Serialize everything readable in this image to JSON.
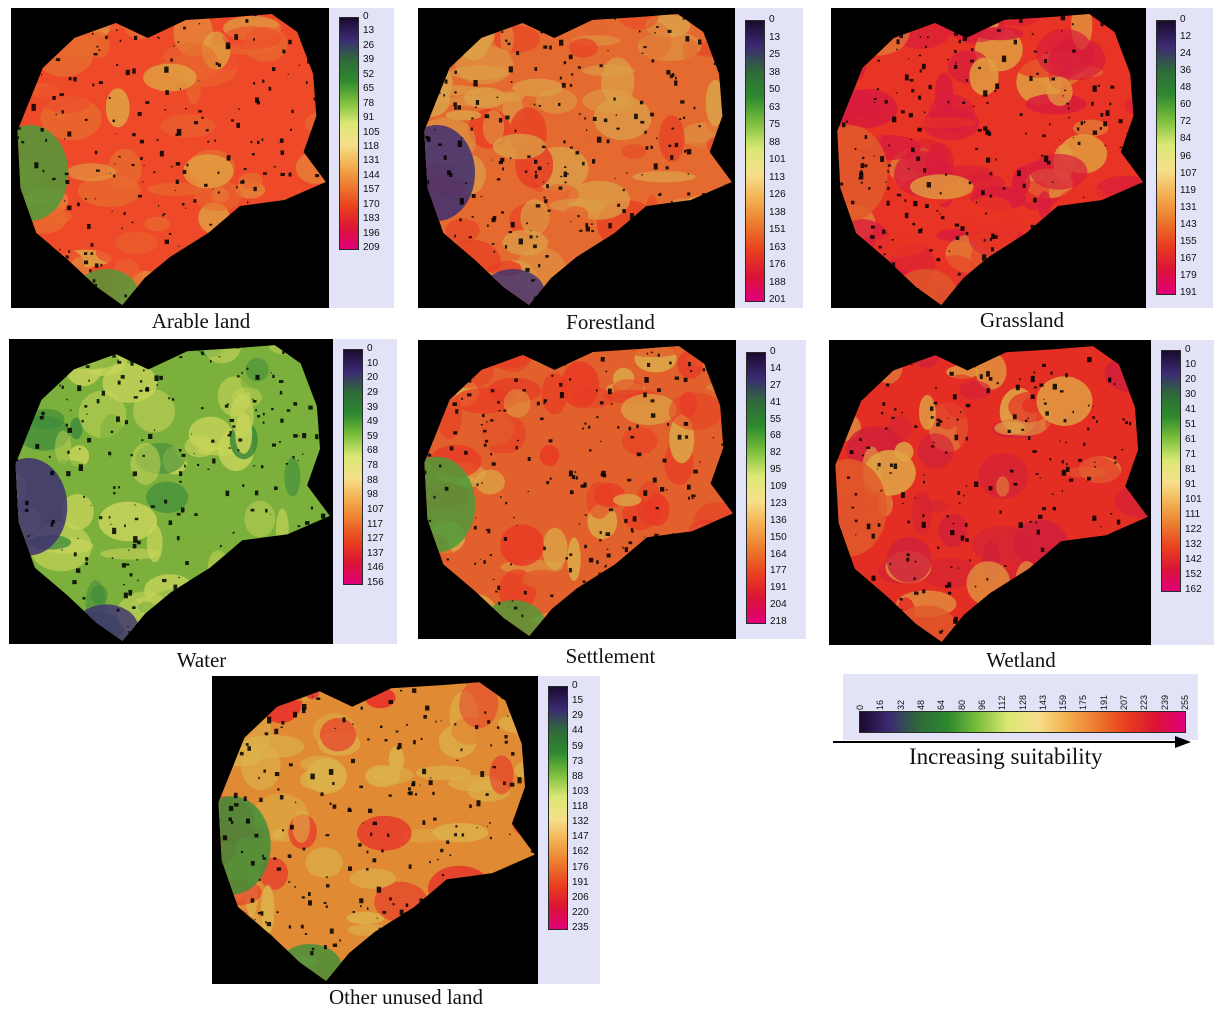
{
  "panels": [
    {
      "id": "arable",
      "caption": "Arable land",
      "legend_values": [
        "0",
        "13",
        "26",
        "39",
        "52",
        "65",
        "78",
        "91",
        "105",
        "118",
        "131",
        "144",
        "157",
        "170",
        "183",
        "196",
        "209"
      ],
      "dominant": "#ee4a2a",
      "secondary": "#e86a2e",
      "accent": "#dfa844",
      "edge": "#4d9a3a"
    },
    {
      "id": "forest",
      "caption": "Forestland",
      "legend_values": [
        "0",
        "13",
        "25",
        "38",
        "50",
        "63",
        "75",
        "88",
        "101",
        "113",
        "126",
        "138",
        "151",
        "163",
        "176",
        "188",
        "201"
      ],
      "dominant": "#e46a30",
      "secondary": "#dca048",
      "accent": "#e84024",
      "edge": "#3d2f72"
    },
    {
      "id": "grass",
      "caption": "Grassland",
      "legend_values": [
        "0",
        "12",
        "24",
        "36",
        "48",
        "60",
        "72",
        "84",
        "96",
        "107",
        "119",
        "131",
        "143",
        "155",
        "167",
        "179",
        "191"
      ],
      "dominant": "#e83424",
      "secondary": "#d81c3c",
      "accent": "#e0a040",
      "edge": "#e05a2a"
    },
    {
      "id": "water",
      "caption": "Water",
      "legend_values": [
        "0",
        "10",
        "20",
        "29",
        "39",
        "49",
        "59",
        "68",
        "78",
        "88",
        "98",
        "107",
        "117",
        "127",
        "137",
        "146",
        "156"
      ],
      "dominant": "#7cb03c",
      "secondary": "#c8d45a",
      "accent": "#3d8a3a",
      "edge": "#3d2f72"
    },
    {
      "id": "settlement",
      "caption": "Settlement",
      "legend_values": [
        "0",
        "14",
        "27",
        "41",
        "55",
        "68",
        "82",
        "95",
        "109",
        "123",
        "136",
        "150",
        "164",
        "177",
        "191",
        "204",
        "218"
      ],
      "dominant": "#e2602c",
      "secondary": "#e83a24",
      "accent": "#dca848",
      "edge": "#4d9a3a"
    },
    {
      "id": "wetland",
      "caption": "Wetland",
      "legend_values": [
        "0",
        "10",
        "20",
        "30",
        "41",
        "51",
        "61",
        "71",
        "81",
        "91",
        "101",
        "111",
        "122",
        "132",
        "142",
        "152",
        "162"
      ],
      "dominant": "#e42e24",
      "secondary": "#d0203a",
      "accent": "#e0a444",
      "edge": "#e05a2a"
    },
    {
      "id": "other",
      "caption": "Other unused land",
      "legend_values": [
        "0",
        "15",
        "29",
        "44",
        "59",
        "73",
        "88",
        "103",
        "118",
        "132",
        "147",
        "162",
        "176",
        "191",
        "206",
        "220",
        "235"
      ],
      "dominant": "#e08a34",
      "secondary": "#dcb24a",
      "accent": "#e8302a",
      "edge": "#3f8e3a"
    }
  ],
  "master_legend": {
    "values": [
      "0",
      "16",
      "32",
      "48",
      "64",
      "80",
      "96",
      "112",
      "128",
      "143",
      "159",
      "175",
      "191",
      "207",
      "223",
      "239",
      "255"
    ],
    "label": "Increasing suitability"
  },
  "colors": {
    "ramp": [
      "#1a0a2e",
      "#3c2a74",
      "#2f6a3a",
      "#2e8a2e",
      "#7cbf3c",
      "#d9e872",
      "#f6e08c",
      "#f3b050",
      "#ec7a2e",
      "#e8401e",
      "#dc1436",
      "#e0007a"
    ],
    "background": "#000000",
    "legend_panel": "#e3e3f8"
  }
}
